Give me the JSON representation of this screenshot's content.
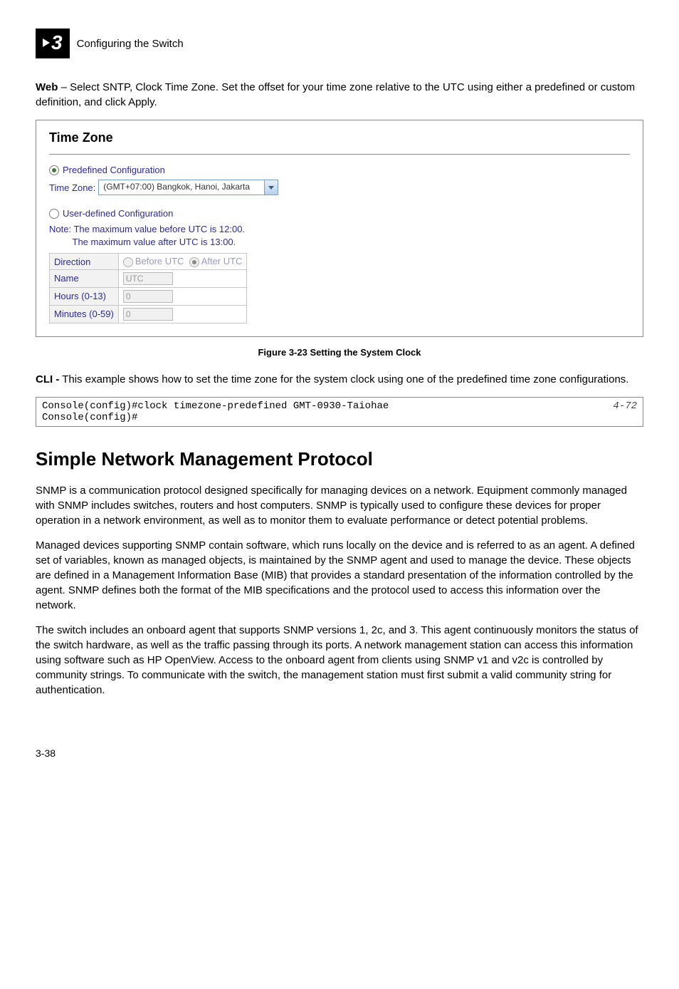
{
  "header": {
    "chapter_number": "3",
    "chapter_title": "Configuring the Switch"
  },
  "intro_para": {
    "bold_prefix": "Web",
    "rest": " – Select SNTP, Clock Time Zone. Set the offset for your time zone relative to the UTC using either a predefined or custom definition, and click Apply."
  },
  "screenshot": {
    "title": "Time Zone",
    "predefined": {
      "radio_checked": true,
      "label": "Predefined Configuration",
      "tz_label": "Time Zone:",
      "tz_value": "(GMT+07:00) Bangkok, Hanoi, Jakarta"
    },
    "userdef": {
      "radio_checked": false,
      "label": "User-defined Configuration",
      "note_line1": "Note: The maximum value before UTC is 12:00.",
      "note_line2": "The maximum value after UTC is 13:00.",
      "rows": {
        "direction": {
          "label": "Direction",
          "before_label": "Before UTC",
          "after_label": "After UTC"
        },
        "name": {
          "label": "Name",
          "value": "UTC"
        },
        "hours": {
          "label": "Hours (0-13)",
          "value": "0"
        },
        "minutes": {
          "label": "Minutes (0-59)",
          "value": "0"
        }
      }
    }
  },
  "figure_caption": "Figure 3-23  Setting the System Clock",
  "cli_para": {
    "bold_prefix": "CLI -",
    "rest": " This example shows how to set the time zone for the system clock using one of the predefined time zone configurations."
  },
  "code": {
    "line1": "Console(config)#clock timezone-predefined GMT-0930-Taiohae",
    "line2": "Console(config)#",
    "ref": "4-72"
  },
  "section_title": "Simple Network Management Protocol",
  "p1": "SNMP is a communication protocol designed specifically for managing devices on a network. Equipment commonly managed with SNMP includes switches, routers and host computers. SNMP is typically used to configure these devices for proper operation in a network environment, as well as to monitor them to evaluate performance or detect potential problems.",
  "p2": "Managed devices supporting SNMP contain software, which runs locally on the device and is referred to as an agent. A defined set of variables, known as managed objects, is maintained by the SNMP agent and used to manage the device. These objects are defined in a Management Information Base (MIB) that provides a standard presentation of the information controlled by the agent. SNMP defines both the format of the MIB specifications and the protocol used to access this information over the network.",
  "p3": "The switch includes an onboard agent that supports SNMP versions 1, 2c, and 3. This agent continuously monitors the status of the switch hardware, as well as the traffic passing through its ports. A network management station can access this information using software such as HP OpenView. Access to the onboard agent from clients using SNMP v1 and v2c is controlled by community strings. To communicate with the switch, the management station must first submit a valid community string for authentication.",
  "page_number": "3-38"
}
